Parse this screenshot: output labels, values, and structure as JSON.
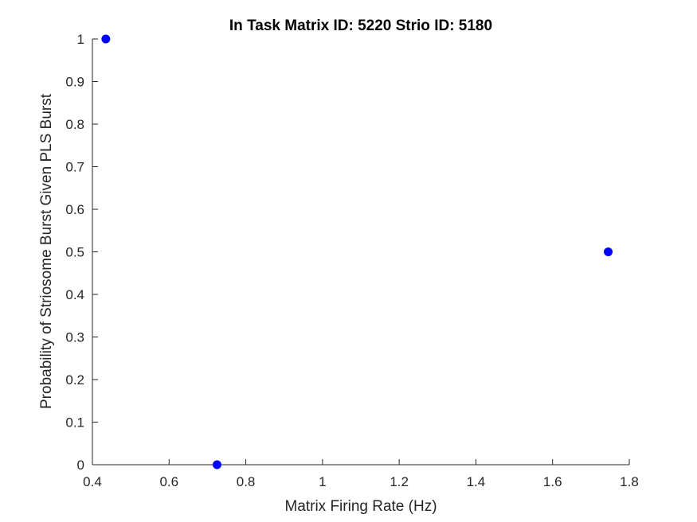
{
  "chart_data": {
    "type": "scatter",
    "title": "In Task Matrix ID: 5220 Strio ID: 5180",
    "xlabel": "Matrix Firing Rate (Hz)",
    "ylabel": "Probability of Striosome Burst Given PLS Burst",
    "xlim": [
      0.4,
      1.8
    ],
    "ylim": [
      0,
      1
    ],
    "xticks": [
      0.4,
      0.6,
      0.8,
      1,
      1.2,
      1.4,
      1.6,
      1.8
    ],
    "xtick_labels": [
      "0.4",
      "0.6",
      "0.8",
      "1",
      "1.2",
      "1.4",
      "1.6",
      "1.8"
    ],
    "yticks": [
      0,
      0.1,
      0.2,
      0.3,
      0.4,
      0.5,
      0.6,
      0.7,
      0.8,
      0.9,
      1
    ],
    "ytick_labels": [
      "0",
      "0.1",
      "0.2",
      "0.3",
      "0.4",
      "0.5",
      "0.6",
      "0.7",
      "0.8",
      "0.9",
      "1"
    ],
    "grid": false,
    "marker_color": "#0000ff",
    "axis_color": "#262626",
    "points": [
      {
        "x": 0.435,
        "y": 1.0
      },
      {
        "x": 0.725,
        "y": 0.0
      },
      {
        "x": 1.745,
        "y": 0.5
      }
    ]
  }
}
